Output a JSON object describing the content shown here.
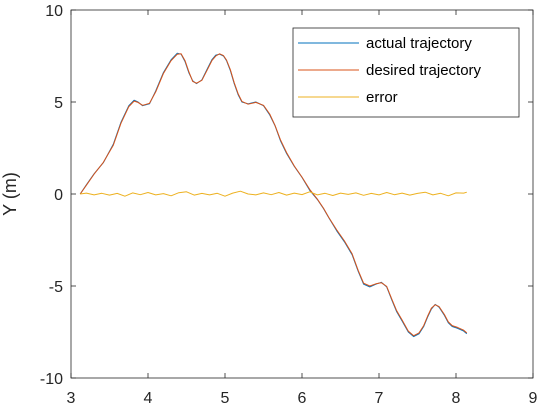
{
  "chart_data": {
    "type": "line",
    "title": "",
    "xlabel": "",
    "ylabel": "Y (m)",
    "xlim": [
      3,
      9
    ],
    "ylim": [
      -10,
      10
    ],
    "xticks": [
      3,
      4,
      5,
      6,
      7,
      8,
      9
    ],
    "yticks": [
      -10,
      -5,
      0,
      5,
      10
    ],
    "xtick_labels": [
      "3",
      "4",
      "5",
      "6",
      "7",
      "8",
      "9"
    ],
    "ytick_labels": [
      "-10",
      "-5",
      "0",
      "5",
      "10"
    ],
    "grid": false,
    "box": true,
    "legend_position": "top-right",
    "colors": {
      "actual": "#0072BD",
      "desired": "#D95319",
      "error": "#EDB120",
      "axis": "#262626"
    },
    "series": [
      {
        "name": "actual trajectory",
        "x": [
          3.12,
          3.2,
          3.3,
          3.42,
          3.55,
          3.65,
          3.75,
          3.82,
          3.87,
          3.93,
          4.02,
          4.1,
          4.2,
          4.3,
          4.38,
          4.43,
          4.48,
          4.53,
          4.58,
          4.63,
          4.7,
          4.77,
          4.83,
          4.88,
          4.93,
          4.98,
          5.02,
          5.07,
          5.12,
          5.17,
          5.22,
          5.3,
          5.4,
          5.5,
          5.58,
          5.65,
          5.72,
          5.8,
          5.9,
          6.0,
          6.1,
          6.2,
          6.28,
          6.35,
          6.45,
          6.55,
          6.65,
          6.73,
          6.8,
          6.88,
          6.96,
          7.03,
          7.1,
          7.17,
          7.23,
          7.3,
          7.38,
          7.45,
          7.52,
          7.58,
          7.63,
          7.68,
          7.73,
          7.78,
          7.85,
          7.9,
          7.95,
          8.02,
          8.1,
          8.14
        ],
        "y": [
          0.0,
          0.5,
          1.1,
          1.7,
          2.7,
          3.9,
          4.8,
          5.1,
          5.0,
          4.8,
          4.9,
          5.6,
          6.6,
          7.3,
          7.65,
          7.6,
          7.2,
          6.6,
          6.15,
          6.0,
          6.2,
          6.8,
          7.3,
          7.55,
          7.6,
          7.5,
          7.25,
          6.7,
          6.0,
          5.4,
          5.0,
          4.9,
          5.0,
          4.8,
          4.3,
          3.7,
          2.9,
          2.2,
          1.5,
          0.9,
          0.2,
          -0.3,
          -0.8,
          -1.3,
          -2.0,
          -2.6,
          -3.3,
          -4.2,
          -4.9,
          -5.05,
          -4.9,
          -4.8,
          -5.05,
          -5.8,
          -6.4,
          -6.9,
          -7.5,
          -7.75,
          -7.6,
          -7.2,
          -6.7,
          -6.25,
          -6.0,
          -6.15,
          -6.6,
          -7.0,
          -7.2,
          -7.3,
          -7.45,
          -7.6
        ]
      },
      {
        "name": "desired trajectory",
        "x": [
          3.12,
          3.2,
          3.3,
          3.42,
          3.55,
          3.65,
          3.75,
          3.82,
          3.87,
          3.93,
          4.02,
          4.1,
          4.2,
          4.3,
          4.38,
          4.43,
          4.48,
          4.53,
          4.58,
          4.63,
          4.7,
          4.77,
          4.83,
          4.88,
          4.93,
          4.98,
          5.02,
          5.07,
          5.12,
          5.17,
          5.22,
          5.3,
          5.4,
          5.5,
          5.58,
          5.65,
          5.72,
          5.8,
          5.9,
          6.0,
          6.1,
          6.2,
          6.28,
          6.35,
          6.45,
          6.55,
          6.65,
          6.73,
          6.8,
          6.88,
          6.96,
          7.03,
          7.1,
          7.17,
          7.23,
          7.3,
          7.38,
          7.45,
          7.52,
          7.58,
          7.63,
          7.68,
          7.73,
          7.78,
          7.85,
          7.9,
          7.95,
          8.02,
          8.1,
          8.14
        ],
        "y": [
          0.0,
          0.48,
          1.08,
          1.72,
          2.65,
          3.85,
          4.75,
          5.05,
          4.98,
          4.82,
          4.93,
          5.55,
          6.55,
          7.25,
          7.6,
          7.62,
          7.25,
          6.65,
          6.12,
          6.02,
          6.18,
          6.75,
          7.25,
          7.5,
          7.62,
          7.52,
          7.28,
          6.75,
          6.05,
          5.45,
          5.03,
          4.88,
          4.98,
          4.82,
          4.35,
          3.72,
          2.95,
          2.25,
          1.52,
          0.92,
          0.25,
          -0.28,
          -0.78,
          -1.28,
          -1.95,
          -2.55,
          -3.25,
          -4.15,
          -4.85,
          -5.0,
          -4.88,
          -4.82,
          -5.02,
          -5.75,
          -6.35,
          -6.85,
          -7.45,
          -7.7,
          -7.55,
          -7.15,
          -6.65,
          -6.2,
          -6.02,
          -6.12,
          -6.55,
          -6.95,
          -7.15,
          -7.25,
          -7.4,
          -7.55
        ]
      },
      {
        "name": "error",
        "x": [
          3.12,
          3.2,
          3.3,
          3.4,
          3.5,
          3.6,
          3.7,
          3.8,
          3.9,
          4.0,
          4.1,
          4.2,
          4.3,
          4.4,
          4.5,
          4.6,
          4.7,
          4.8,
          4.9,
          5.0,
          5.1,
          5.2,
          5.3,
          5.4,
          5.5,
          5.6,
          5.7,
          5.8,
          5.9,
          6.0,
          6.1,
          6.2,
          6.3,
          6.4,
          6.5,
          6.6,
          6.7,
          6.8,
          6.9,
          7.0,
          7.1,
          7.2,
          7.3,
          7.4,
          7.5,
          7.6,
          7.7,
          7.8,
          7.9,
          8.0,
          8.1,
          8.14
        ],
        "y": [
          0.0,
          0.05,
          -0.05,
          0.04,
          -0.06,
          0.03,
          -0.12,
          0.06,
          -0.04,
          0.08,
          -0.05,
          0.02,
          -0.1,
          0.07,
          0.12,
          -0.06,
          0.03,
          -0.05,
          0.04,
          -0.12,
          0.05,
          0.15,
          0.0,
          -0.05,
          0.06,
          -0.04,
          0.08,
          -0.06,
          0.05,
          -0.03,
          0.12,
          -0.05,
          0.04,
          -0.08,
          0.05,
          -0.02,
          0.06,
          -0.07,
          0.03,
          -0.05,
          0.08,
          -0.04,
          0.05,
          -0.06,
          0.03,
          0.1,
          -0.05,
          0.04,
          -0.1,
          0.06,
          0.05,
          0.1
        ]
      }
    ]
  }
}
